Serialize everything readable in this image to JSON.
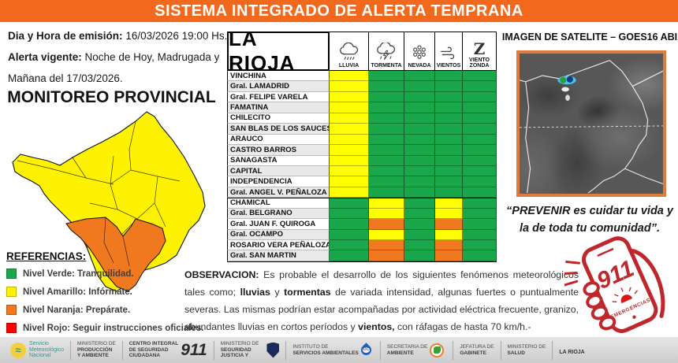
{
  "banner": {
    "title": "SISTEMA INTEGRADO DE ALERTA TEMPRANA"
  },
  "emission": {
    "label": "Dia y Hora de emisión:",
    "value": "16/03/2026  19:00 Hs."
  },
  "alert": {
    "label": "Alerta vigente:",
    "value_line1": "Noche de Hoy, Madrugada y",
    "value_line2": "Mañana del 17/03/2026."
  },
  "monitoring": {
    "title": "MONITOREO PROVINCIAL"
  },
  "references": {
    "title": "REFERENCIAS:",
    "items": [
      {
        "level": "green",
        "color": "#1AA64A",
        "label": "Nivel Verde: Tranquilidad."
      },
      {
        "level": "yellow",
        "color": "#FFF200",
        "label": "Nivel Amarillo: Infórmate."
      },
      {
        "level": "orange",
        "color": "#F0781E",
        "label": "Nivel Naranja: Prepárate."
      },
      {
        "level": "red",
        "color": "#FE0000",
        "label": "Nivel Rojo: Seguir instrucciones oficiales."
      }
    ]
  },
  "table": {
    "title": "LA RIOJA",
    "columns": [
      {
        "label": "LLUVIA",
        "icon": "rain-cloud-icon"
      },
      {
        "label": "TORMENTA",
        "icon": "storm-cloud-icon"
      },
      {
        "label": "NEVADA",
        "icon": "snowflake-icon"
      },
      {
        "label": "VIENTOS",
        "icon": "wind-icon"
      },
      {
        "label": "VIENTO ZONDA",
        "icon": "zonda-wind-icon"
      }
    ],
    "level_colors": {
      "green": "#1AA64A",
      "yellow": "#FFFF00",
      "orange": "#F0781E"
    },
    "rows": [
      {
        "name": "VINCHINA",
        "levels": [
          "yellow",
          "green",
          "green",
          "green",
          "green"
        ]
      },
      {
        "name": "Gral. LAMADRID",
        "levels": [
          "yellow",
          "green",
          "green",
          "green",
          "green"
        ]
      },
      {
        "name": "Gral. FELIPE VARELA",
        "levels": [
          "yellow",
          "green",
          "green",
          "green",
          "green"
        ]
      },
      {
        "name": "FAMATINA",
        "levels": [
          "yellow",
          "green",
          "green",
          "green",
          "green"
        ]
      },
      {
        "name": "CHILECITO",
        "levels": [
          "yellow",
          "green",
          "green",
          "green",
          "green"
        ]
      },
      {
        "name": "SAN BLAS DE LOS SAUCES",
        "levels": [
          "yellow",
          "green",
          "green",
          "green",
          "green"
        ]
      },
      {
        "name": "ARAUCO",
        "levels": [
          "yellow",
          "green",
          "green",
          "green",
          "green"
        ]
      },
      {
        "name": "CASTRO BARROS",
        "levels": [
          "yellow",
          "green",
          "green",
          "green",
          "green"
        ]
      },
      {
        "name": "SANAGASTA",
        "levels": [
          "yellow",
          "green",
          "green",
          "green",
          "green"
        ]
      },
      {
        "name": "CAPITAL",
        "levels": [
          "yellow",
          "green",
          "green",
          "green",
          "green"
        ]
      },
      {
        "name": "INDEPENDENCIA",
        "levels": [
          "yellow",
          "green",
          "green",
          "green",
          "green"
        ]
      },
      {
        "name": "Gral. ANGEL V. PEÑALOZA",
        "levels": [
          "yellow",
          "green",
          "green",
          "green",
          "green"
        ]
      },
      {
        "name": "CHAMICAL",
        "levels": [
          "green",
          "yellow",
          "green",
          "yellow",
          "green"
        ]
      },
      {
        "name": "Gral. BELGRANO",
        "levels": [
          "green",
          "yellow",
          "green",
          "yellow",
          "green"
        ]
      },
      {
        "name": "Gral. JUAN F. QUIROGA",
        "levels": [
          "green",
          "orange",
          "green",
          "orange",
          "green"
        ]
      },
      {
        "name": "Gral. OCAMPO",
        "levels": [
          "green",
          "yellow",
          "green",
          "yellow",
          "green"
        ]
      },
      {
        "name": "ROSARIO VERA PEÑALOZA",
        "levels": [
          "green",
          "orange",
          "green",
          "orange",
          "green"
        ]
      },
      {
        "name": "Gral. SAN MARTIN",
        "levels": [
          "green",
          "orange",
          "green",
          "orange",
          "green"
        ]
      }
    ]
  },
  "satellite": {
    "title": "IMAGEN DE SATELITE – GOES16 ABI"
  },
  "quote": {
    "line1": "“PREVENIR es cuidar tu vida y",
    "line2": "la de toda tu comunidad”."
  },
  "emergency": {
    "number": "911",
    "label": "EMERGENCIAS"
  },
  "observation": {
    "label": "OBSERVACION:",
    "s1": " Es probable el desarrollo de los siguientes fenómenos meteorológicos tales como; ",
    "b1": "lluvias",
    "s2": " y ",
    "b2": "tormentas",
    "s3": " de variada intensidad, algunas fuertes o puntualmente severas. Las mismas podrían estar acompañadas por actividad eléctrica frecuente, granizo, abundantes lluvias en cortos períodos y ",
    "b3": "vientos,",
    "s4": " con ráfagas de hasta 70 km/h.-"
  },
  "footer": {
    "items": [
      {
        "line1": "Servicio",
        "line2": "Meteorológico",
        "line3": "Nacional"
      },
      {
        "line1": "MINISTERIO DE",
        "line2": "PRODUCCIÓN",
        "line3": "Y AMBIENTE"
      },
      {
        "line1": "CENTRO INTEGRAL",
        "line2": "DE SEGURIDAD",
        "line3": "CIUDADANA",
        "number": "911"
      },
      {
        "line1": "MINISTERIO DE",
        "line2": "SEGURIDAD",
        "line3": "JUSTICIA Y"
      },
      {
        "line1": "INSTITUTO DE",
        "line2": "SERVICIOS AMBIENTALES"
      },
      {
        "line1": "SECRETARIA DE",
        "line2": "AMBIENTE"
      },
      {
        "line1": "JEFATURA DE",
        "line2": "GABINETE"
      },
      {
        "line1": "MINISTERIO DE",
        "line2": "SALUD"
      },
      {
        "line1": "LA RIOJA"
      }
    ]
  }
}
